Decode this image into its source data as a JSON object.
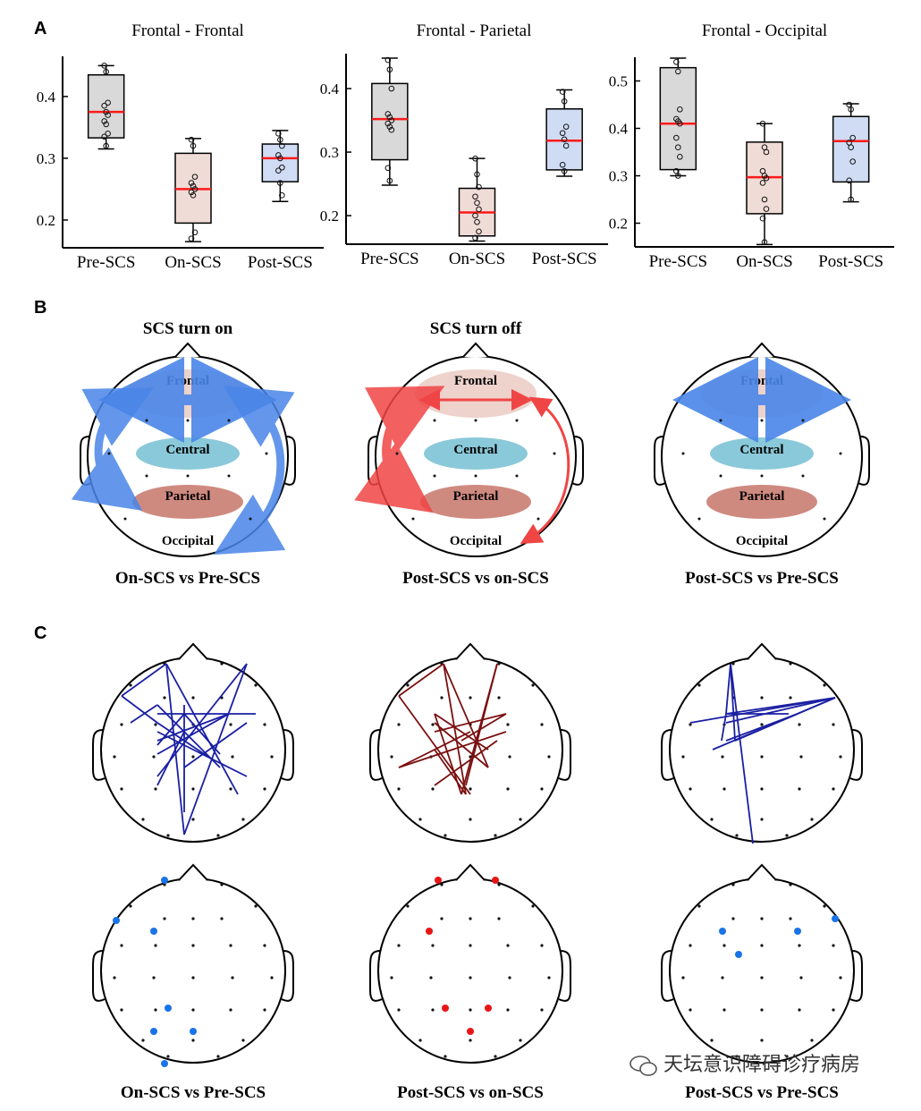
{
  "panels": {
    "a": "A",
    "b": "B",
    "c": "C"
  },
  "chart_data": [
    {
      "type": "box",
      "title": "Frontal - Frontal",
      "categories": [
        "Pre-SCS",
        "On-SCS",
        "Post-SCS"
      ],
      "yticks": [
        0.2,
        0.3,
        0.4
      ],
      "ylim": [
        0.155,
        0.465
      ],
      "boxes": [
        {
          "min": 0.315,
          "q1": 0.333,
          "median": 0.375,
          "q3": 0.435,
          "max": 0.45,
          "points": [
            0.45,
            0.44,
            0.39,
            0.385,
            0.375,
            0.37,
            0.36,
            0.355,
            0.34,
            0.335,
            0.32
          ]
        },
        {
          "min": 0.165,
          "q1": 0.195,
          "median": 0.25,
          "q3": 0.308,
          "max": 0.332,
          "points": [
            0.33,
            0.32,
            0.27,
            0.26,
            0.255,
            0.25,
            0.245,
            0.24,
            0.18,
            0.17
          ]
        },
        {
          "min": 0.23,
          "q1": 0.262,
          "median": 0.3,
          "q3": 0.323,
          "max": 0.345,
          "points": [
            0.34,
            0.33,
            0.32,
            0.305,
            0.3,
            0.285,
            0.28,
            0.26,
            0.24
          ]
        }
      ]
    },
    {
      "type": "box",
      "title": "Frontal - Parietal",
      "categories": [
        "Pre-SCS",
        "On-SCS",
        "Post-SCS"
      ],
      "yticks": [
        0.2,
        0.3,
        0.4
      ],
      "ylim": [
        0.155,
        0.455
      ],
      "boxes": [
        {
          "min": 0.248,
          "q1": 0.288,
          "median": 0.352,
          "q3": 0.408,
          "max": 0.448,
          "points": [
            0.445,
            0.43,
            0.4,
            0.36,
            0.355,
            0.35,
            0.345,
            0.34,
            0.335,
            0.275,
            0.255
          ]
        },
        {
          "min": 0.16,
          "q1": 0.168,
          "median": 0.205,
          "q3": 0.243,
          "max": 0.29,
          "points": [
            0.29,
            0.265,
            0.245,
            0.23,
            0.22,
            0.21,
            0.2,
            0.19,
            0.175,
            0.165
          ]
        },
        {
          "min": 0.262,
          "q1": 0.272,
          "median": 0.318,
          "q3": 0.368,
          "max": 0.398,
          "points": [
            0.395,
            0.38,
            0.34,
            0.33,
            0.32,
            0.31,
            0.28,
            0.27
          ]
        }
      ]
    },
    {
      "type": "box",
      "title": "Frontal - Occipital",
      "categories": [
        "Pre-SCS",
        "On-SCS",
        "Post-SCS"
      ],
      "yticks": [
        0.2,
        0.3,
        0.4,
        0.5
      ],
      "ylim": [
        0.15,
        0.55
      ],
      "boxes": [
        {
          "min": 0.3,
          "q1": 0.313,
          "median": 0.41,
          "q3": 0.528,
          "max": 0.548,
          "points": [
            0.54,
            0.52,
            0.44,
            0.42,
            0.415,
            0.41,
            0.38,
            0.36,
            0.34,
            0.31,
            0.3
          ]
        },
        {
          "min": 0.155,
          "q1": 0.22,
          "median": 0.297,
          "q3": 0.371,
          "max": 0.41,
          "points": [
            0.41,
            0.36,
            0.35,
            0.31,
            0.3,
            0.295,
            0.285,
            0.25,
            0.23,
            0.21,
            0.16
          ]
        },
        {
          "min": 0.245,
          "q1": 0.287,
          "median": 0.373,
          "q3": 0.425,
          "max": 0.452,
          "points": [
            0.45,
            0.44,
            0.38,
            0.37,
            0.36,
            0.33,
            0.29,
            0.25
          ]
        }
      ]
    }
  ],
  "section_b": {
    "headers": [
      "SCS turn on",
      "SCS turn off",
      ""
    ],
    "regions": {
      "frontal": "Frontal",
      "central": "Central",
      "parietal": "Parietal",
      "occipital": "Occipital"
    },
    "colors": {
      "blue": "#4a86e8",
      "red": "#f04545",
      "frontal_fill": "#eed2cc",
      "central_fill": "#8ac9d9",
      "parietal_fill": "#cf8a80",
      "occipital_fill": "#cfcfcf"
    },
    "labels": [
      "On-SCS vs Pre-SCS",
      "Post-SCS vs on-SCS",
      "Post-SCS vs Pre-SCS"
    ]
  },
  "section_c": {
    "labels": [
      "On-SCS vs Pre-SCS",
      "Post-SCS vs on-SCS",
      "Post-SCS vs Pre-SCS"
    ],
    "colors": {
      "navy": "#1a1fa3",
      "darkred": "#7a0f0f",
      "blue_dot": "#1a73e8",
      "red_dot": "#e81515"
    }
  },
  "watermark": "天坛意识障碍诊疗病房"
}
